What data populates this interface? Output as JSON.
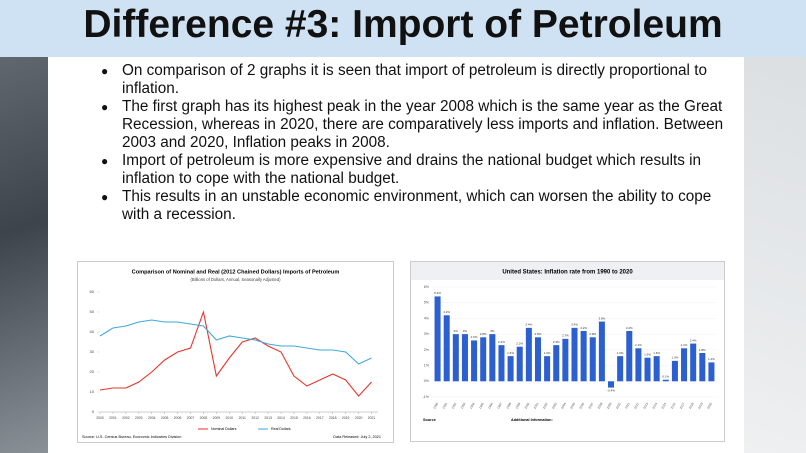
{
  "title": "Difference #3:  Import of Petroleum",
  "bullets": [
    "On comparison of 2 graphs it is seen that import of petroleum is directly proportional to inflation.",
    "The first graph has its highest peak in the year 2008 which is the same year as the Great Recession, whereas in 2020, there are comparatively less imports and inflation. Between 2003 and 2020, Inflation peaks in 2008.",
    "Import of petroleum is more expensive and drains the national budget which results in inflation to cope with the national budget.",
    "This results in an unstable economic environment, which can worsen the ability to cope with a recession."
  ],
  "chart_data": [
    {
      "type": "line",
      "title": "Comparison of Nominal and Real (2012 Chained Dollars) Imports of Petroleum",
      "subtitle": "(Billions of Dollars, Annual, Seasonally Adjusted)",
      "x": [
        2000,
        2001,
        2002,
        2003,
        2004,
        2005,
        2006,
        2007,
        2008,
        2009,
        2010,
        2011,
        2012,
        2013,
        2014,
        2015,
        2016,
        2017,
        2018,
        2019,
        2020,
        2021
      ],
      "series": [
        {
          "name": "Nominal Dollars",
          "color": "#e8352c",
          "values": [
            11,
            12,
            12,
            15,
            20,
            26,
            30,
            32,
            50,
            18,
            27,
            35,
            37,
            33,
            30,
            18,
            13,
            16,
            19,
            16,
            8,
            15
          ]
        },
        {
          "name": "Real Dollars",
          "color": "#3fa9dc",
          "values": [
            38,
            42,
            43,
            45,
            46,
            45,
            45,
            44,
            43,
            36,
            38,
            37,
            36,
            34,
            33,
            33,
            32,
            31,
            31,
            30,
            24,
            27
          ]
        }
      ],
      "xlim": [
        2000,
        2021.5
      ],
      "xticks": [
        2000,
        2001,
        2002,
        2003,
        2004,
        2005,
        2006,
        2007,
        2008,
        2009,
        2010,
        2011,
        2012,
        2013,
        2014,
        2015,
        2016,
        2017,
        2018,
        2019,
        2020,
        2021
      ],
      "ylim": [
        0,
        60
      ],
      "yticks": [
        0,
        10,
        20,
        30,
        40,
        50,
        60
      ],
      "source": "Source: U.S. Census Bureau, Economic Indicators Division",
      "release": "Data Released: July 2, 2021"
    },
    {
      "type": "bar",
      "title": "United States: Inflation rate from 1990 to 2020",
      "categories": [
        "1990",
        "1991",
        "1992",
        "1993",
        "1994",
        "1995",
        "1996",
        "1997",
        "1998",
        "1999",
        "2000",
        "2001",
        "2002",
        "2003",
        "2004",
        "2005",
        "2006",
        "2007",
        "2008",
        "2009",
        "2010",
        "2011",
        "2012",
        "2013",
        "2014",
        "2015",
        "2016",
        "2017",
        "2018",
        "2019",
        "2020"
      ],
      "values": [
        5.4,
        4.2,
        3,
        3,
        2.6,
        2.8,
        3,
        2.3,
        1.6,
        2.2,
        3.4,
        2.8,
        1.6,
        2.3,
        2.7,
        3.4,
        3.2,
        2.8,
        3.8,
        -0.4,
        1.6,
        3.2,
        2.1,
        1.5,
        1.6,
        0.1,
        1.3,
        2.1,
        2.4,
        1.8,
        1.2
      ],
      "value_labels": [
        "5.4%",
        "4.2%",
        "3%",
        "3%",
        "2.6%",
        "2.8%",
        "3%",
        "2.3%",
        "1.6%",
        "2.2%",
        "3.4%",
        "2.8%",
        "1.6%",
        "2.3%",
        "2.7%",
        "3.4%",
        "3.2%",
        "2.8%",
        "3.8%",
        "-0.4%",
        "1.6%",
        "3.2%",
        "2.1%",
        "1.5%",
        "1.6%",
        "0.1%",
        "1.3%",
        "2.1%",
        "2.4%",
        "1.8%",
        "1.2%"
      ],
      "color": "#2c5fd0",
      "ylim": [
        -1,
        6
      ],
      "yticks": [
        {
          "value": -1,
          "label": "-1%"
        },
        {
          "value": 0,
          "label": "0%"
        },
        {
          "value": 1,
          "label": "1%"
        },
        {
          "value": 2,
          "label": "2%"
        },
        {
          "value": 3,
          "label": "3%"
        },
        {
          "value": 4,
          "label": "4%"
        },
        {
          "value": 5,
          "label": "5%"
        },
        {
          "value": 6,
          "label": "6%"
        }
      ],
      "grid": true,
      "source": "Source",
      "note": "Additional Information:"
    }
  ]
}
